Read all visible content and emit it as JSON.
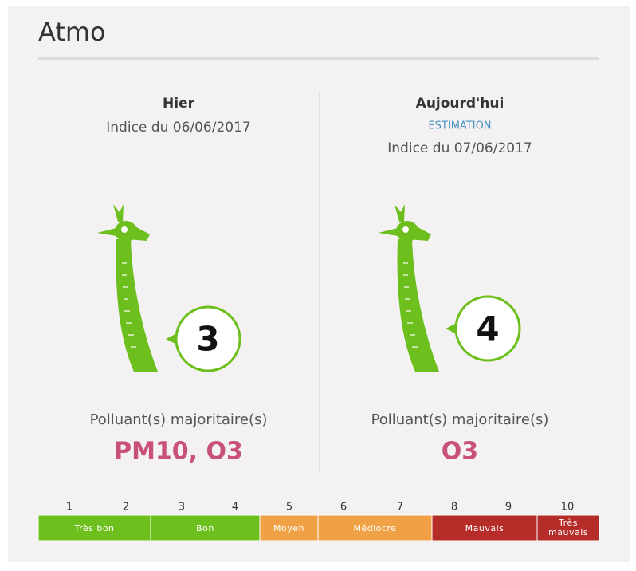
{
  "title": "Atmo",
  "panels": [
    {
      "heading": "Hier",
      "date": "Indice du 06/06/2017",
      "index": "3",
      "pollutants_label": "Polluant(s) majoritaire(s)",
      "pollutants": "PM10, O3"
    },
    {
      "heading": "Aujourd'hui",
      "note": "ESTIMATION",
      "date": "Indice du 07/06/2017",
      "index": "4",
      "pollutants_label": "Polluant(s) majoritaire(s)",
      "pollutants": "O3"
    }
  ],
  "scale": {
    "numbers": [
      "1",
      "2",
      "3",
      "4",
      "5",
      "6",
      "7",
      "8",
      "9",
      "10"
    ],
    "levels": [
      "Très bon",
      "Bon",
      "Moyen",
      "Médiocre",
      "Mauvais",
      "Très mauvais"
    ]
  }
}
